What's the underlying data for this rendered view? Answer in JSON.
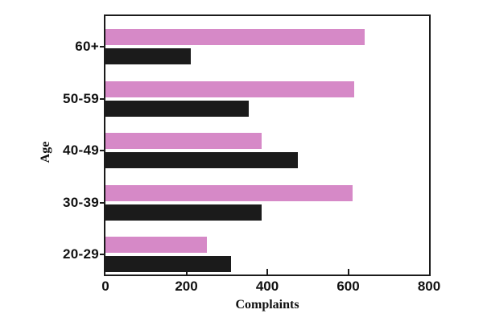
{
  "chart_data": {
    "type": "bar",
    "orientation": "horizontal",
    "title": "",
    "xlabel": "Complaints",
    "ylabel": "Age",
    "categories": [
      "60+",
      "50-59",
      "40-49",
      "30-39",
      "20-29"
    ],
    "series": [
      {
        "name": "pink-series",
        "color": "#d689c7",
        "values": [
          640,
          615,
          385,
          610,
          250
        ]
      },
      {
        "name": "black-series",
        "color": "#1b1b1b",
        "values": [
          210,
          355,
          475,
          385,
          310
        ]
      }
    ],
    "xlim": [
      0,
      800
    ],
    "xticks": [
      0,
      200,
      400,
      600,
      800
    ],
    "legend": "none",
    "grid": false,
    "plot_border_color": "#1b1b1b",
    "background_color": "#ffffff"
  }
}
